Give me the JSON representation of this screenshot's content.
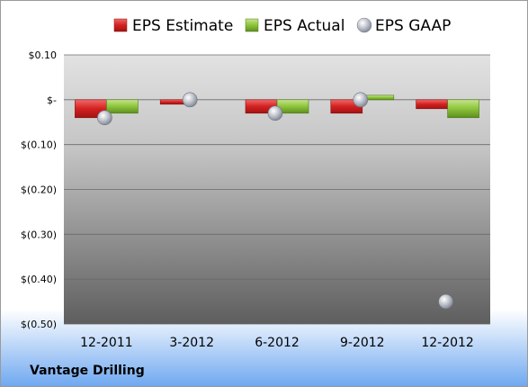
{
  "company": "Vantage Drilling",
  "colors": {
    "estimate": "#d42020",
    "actual": "#8cc43a",
    "gaap": "#b8bcc4",
    "plot_top": "#dcdcdc",
    "plot_bottom": "#5a5a5a"
  },
  "chart_data": {
    "type": "bar",
    "categories": [
      "12-2011",
      "3-2012",
      "6-2012",
      "9-2012",
      "12-2012"
    ],
    "series": [
      {
        "name": "EPS Estimate",
        "kind": "bar",
        "values": [
          -0.04,
          -0.01,
          -0.03,
          -0.03,
          -0.02
        ]
      },
      {
        "name": "EPS Actual",
        "kind": "bar",
        "values": [
          -0.03,
          null,
          -0.03,
          0.01,
          -0.04
        ]
      },
      {
        "name": "EPS GAAP",
        "kind": "marker",
        "values": [
          -0.04,
          0.0,
          -0.03,
          0.0,
          -0.45
        ]
      }
    ],
    "yticks": [
      0.1,
      0.0,
      -0.1,
      -0.2,
      -0.3,
      -0.4,
      -0.5
    ],
    "ytick_labels": [
      "$0.10",
      "$-",
      "$(0.10)",
      "$(0.20)",
      "$(0.30)",
      "$(0.40)",
      "$(0.50)"
    ],
    "ylim": [
      -0.5,
      0.1
    ],
    "grid": true,
    "legend": "top"
  }
}
